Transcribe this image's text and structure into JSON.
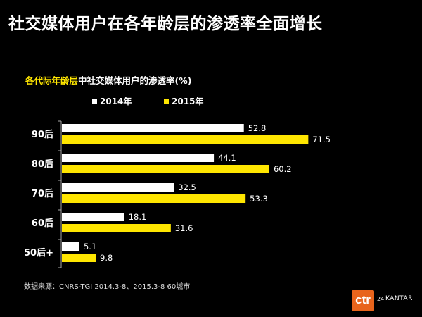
{
  "slide": {
    "title": "社交媒体用户在各年龄层的渗透率全面增长",
    "subtitle_highlight": "各代际年龄层",
    "subtitle_rest": "中社交媒体用户的渗透率(%)",
    "source": "数据来源：CNRS-TGI 2014.3-8、2015.3-8  60城市",
    "logo": {
      "ctr": "ctr",
      "num": "24",
      "kantar": "KANTAR"
    }
  },
  "colors": {
    "series_2014": "#ffffff",
    "series_2015": "#ffe600",
    "background": "#000000",
    "axis": "#aaaaaa",
    "accent": "#e8641c"
  },
  "chart_data": {
    "type": "bar",
    "orientation": "horizontal",
    "title": "各代际年龄层中社交媒体用户的渗透率(%)",
    "categories": [
      "90后",
      "80后",
      "70后",
      "60后",
      "50后+"
    ],
    "series": [
      {
        "name": "2014年",
        "values": [
          52.8,
          44.1,
          32.5,
          18.1,
          5.1
        ]
      },
      {
        "name": "2015年",
        "values": [
          71.5,
          60.2,
          53.3,
          31.6,
          9.8
        ]
      }
    ],
    "xlim": [
      0,
      100
    ],
    "legend_position": "top",
    "grid": false
  }
}
